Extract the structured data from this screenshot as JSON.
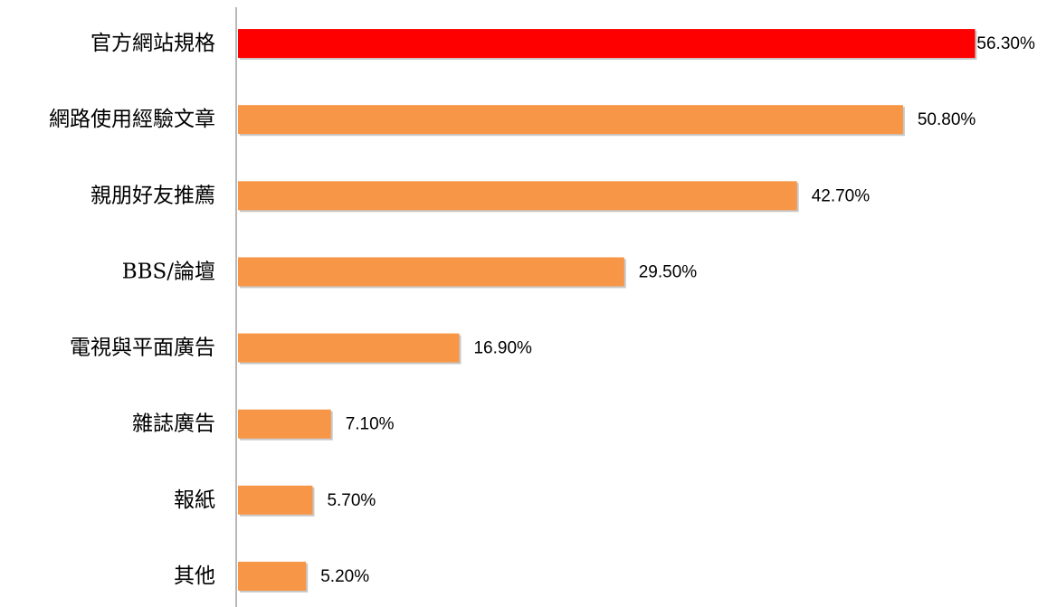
{
  "chart_data": {
    "type": "hbar",
    "categories": [
      "官方網站規格",
      "網路使用經驗文章",
      "親朋好友推薦",
      "BBS/論壇",
      "電視與平面廣告",
      "雜誌廣告",
      "報紙",
      "其他"
    ],
    "values": [
      56.3,
      50.8,
      42.7,
      29.5,
      16.9,
      7.1,
      5.7,
      5.2
    ],
    "value_labels": [
      "56.30%",
      "50.80%",
      "42.70%",
      "29.50%",
      "16.90%",
      "7.10%",
      "5.70%",
      "5.20%"
    ],
    "colors": [
      "#ff0000",
      "#f79646",
      "#f79646",
      "#f79646",
      "#f79646",
      "#f79646",
      "#f79646",
      "#f79646"
    ],
    "xlim": [
      0,
      61.8
    ]
  }
}
